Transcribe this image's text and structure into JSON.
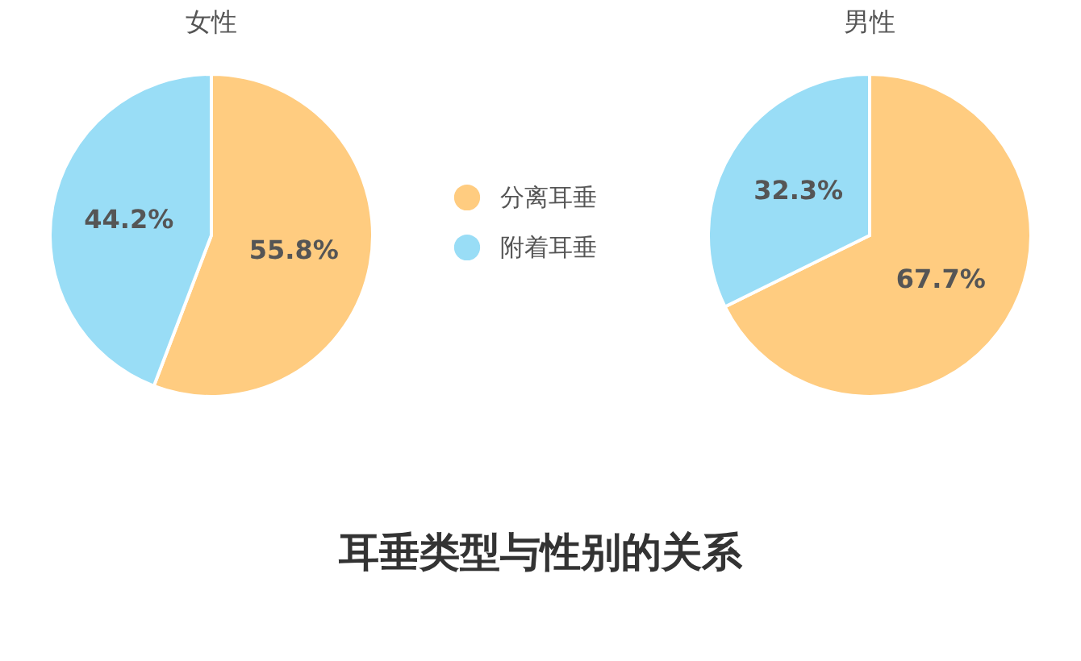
{
  "chart_data": [
    {
      "type": "pie",
      "title": "女性",
      "categories": [
        "分离耳垂",
        "附着耳垂"
      ],
      "values": [
        55.8,
        44.2
      ],
      "colors": [
        "#ffcc80",
        "#99ddf6"
      ],
      "value_labels": [
        "55.8%",
        "44.2%"
      ],
      "legend": "right"
    },
    {
      "type": "pie",
      "title": "男性",
      "categories": [
        null,
        null
      ],
      "values": [
        67.7,
        32.3
      ],
      "colors": [
        "#ffcc80",
        "#99ddf6"
      ],
      "value_labels": [
        "67.7%",
        "32.3%"
      ]
    },
    {
      "type": "other",
      "title": "耳垂类型与性别的关系"
    }
  ]
}
